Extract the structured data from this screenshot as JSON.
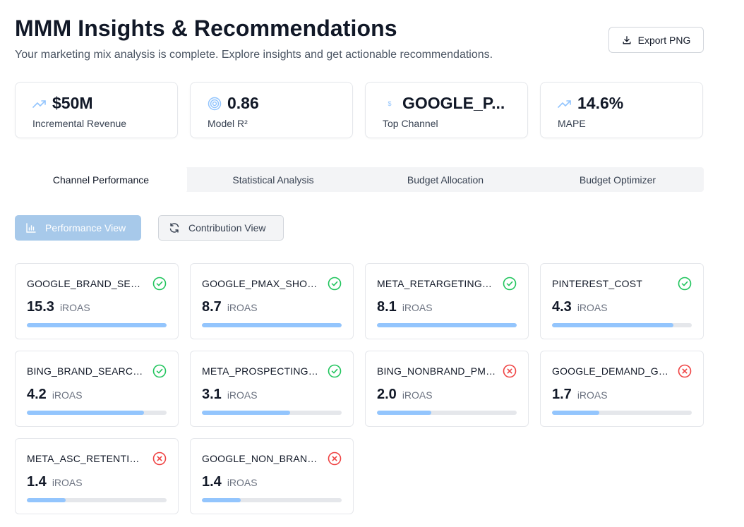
{
  "header": {
    "title": "MMM Insights & Recommendations",
    "subtitle": "Your marketing mix analysis is complete. Explore insights and get actionable recommendations.",
    "export_label": "Export PNG"
  },
  "kpis": [
    {
      "icon": "trending-up-icon",
      "value": "$50M",
      "label": "Incremental Revenue"
    },
    {
      "icon": "target-icon",
      "value": "0.86",
      "label": "Model R²"
    },
    {
      "icon": "dollar-icon",
      "value": "GOOGLE_P...",
      "label": "Top Channel"
    },
    {
      "icon": "trending-up-icon",
      "value": "14.6%",
      "label": "MAPE"
    }
  ],
  "tabs": [
    {
      "label": "Channel Performance",
      "active": true
    },
    {
      "label": "Statistical Analysis",
      "active": false
    },
    {
      "label": "Budget Allocation",
      "active": false
    },
    {
      "label": "Budget Optimizer",
      "active": false
    }
  ],
  "views": {
    "performance_label": "Performance View",
    "contribution_label": "Contribution View"
  },
  "colors": {
    "accent": "#93c5fd",
    "success": "#22c55e",
    "danger": "#ef4444"
  },
  "channels": [
    {
      "name": "GOOGLE_BRAND_SEAR...",
      "value": "15.3",
      "unit": "iROAS",
      "status": "positive",
      "progress": 1.0
    },
    {
      "name": "GOOGLE_PMAX_SHOPPI...",
      "value": "8.7",
      "unit": "iROAS",
      "status": "positive",
      "progress": 1.0
    },
    {
      "name": "META_RETARGETING_C...",
      "value": "8.1",
      "unit": "iROAS",
      "status": "positive",
      "progress": 1.0
    },
    {
      "name": "PINTEREST_COST",
      "value": "4.3",
      "unit": "iROAS",
      "status": "positive",
      "progress": 0.87
    },
    {
      "name": "BING_BRAND_SEARCH_...",
      "value": "4.2",
      "unit": "iROAS",
      "status": "positive",
      "progress": 0.84
    },
    {
      "name": "META_PROSPECTING_C...",
      "value": "3.1",
      "unit": "iROAS",
      "status": "positive",
      "progress": 0.63
    },
    {
      "name": "BING_NONBRAND_PMA...",
      "value": "2.0",
      "unit": "iROAS",
      "status": "negative",
      "progress": 0.39
    },
    {
      "name": "GOOGLE_DEMAND_GE...",
      "value": "1.7",
      "unit": "iROAS",
      "status": "negative",
      "progress": 0.34
    },
    {
      "name": "META_ASC_RETENTION_...",
      "value": "1.4",
      "unit": "iROAS",
      "status": "negative",
      "progress": 0.28
    },
    {
      "name": "GOOGLE_NON_BRAND_...",
      "value": "1.4",
      "unit": "iROAS",
      "status": "negative",
      "progress": 0.28
    }
  ]
}
